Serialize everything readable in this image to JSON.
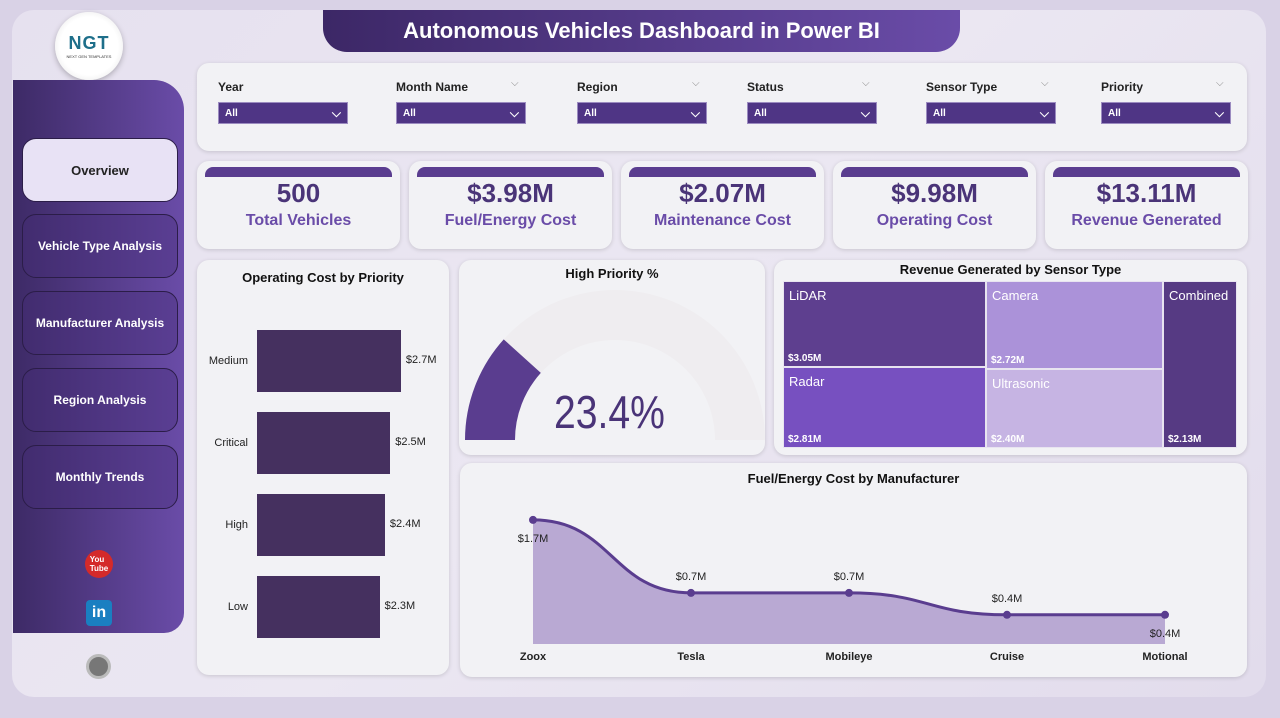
{
  "logo": {
    "text": "NGT",
    "subtext": "NEXT GEN TEMPLATES"
  },
  "header": {
    "title": "Autonomous Vehicles Dashboard in Power BI"
  },
  "sidebar": {
    "items": [
      {
        "label": "Overview",
        "active": true
      },
      {
        "label": "Vehicle Type Analysis"
      },
      {
        "label": "Manufacturer Analysis"
      },
      {
        "label": "Region Analysis"
      },
      {
        "label": "Monthly Trends"
      }
    ],
    "social": [
      "youtube-icon",
      "linkedin-icon",
      "globe-icon"
    ]
  },
  "filters": [
    {
      "label": "Year",
      "value": "All"
    },
    {
      "label": "Month Name",
      "value": "All"
    },
    {
      "label": "Region",
      "value": "All"
    },
    {
      "label": "Status",
      "value": "All"
    },
    {
      "label": "Sensor Type",
      "value": "All"
    },
    {
      "label": "Priority",
      "value": "All"
    }
  ],
  "kpis": [
    {
      "value": "500",
      "label": "Total Vehicles"
    },
    {
      "value": "$3.98M",
      "label": "Fuel/Energy Cost"
    },
    {
      "value": "$2.07M",
      "label": "Maintenance Cost"
    },
    {
      "value": "$9.98M",
      "label": "Operating Cost"
    },
    {
      "value": "$13.11M",
      "label": "Revenue Generated"
    }
  ],
  "colors": {
    "primary": "#4f3585",
    "accent": "#6a4ca8"
  },
  "chart_data": [
    {
      "type": "bar",
      "orientation": "horizontal",
      "title": "Operating Cost by Priority",
      "categories": [
        "Medium",
        "Critical",
        "High",
        "Low"
      ],
      "values": [
        2.7,
        2.5,
        2.4,
        2.3
      ],
      "labels": [
        "$2.7M",
        "$2.5M",
        "$2.4M",
        "$2.3M"
      ],
      "color": "#45305f"
    },
    {
      "type": "gauge",
      "title": "High Priority %",
      "value": 23.4,
      "label": "23.4%",
      "range": [
        0,
        100
      ]
    },
    {
      "type": "treemap",
      "title": "Revenue Generated by Sensor Type",
      "items": [
        {
          "name": "LiDAR",
          "value": 3.05,
          "label": "$3.05M",
          "color": "#5e3f8f"
        },
        {
          "name": "Camera",
          "value": 2.72,
          "label": "$2.72M",
          "color": "#ab92d9"
        },
        {
          "name": "Radar",
          "value": 2.81,
          "label": "$2.81M",
          "color": "#7750c0"
        },
        {
          "name": "Ultrasonic",
          "value": 2.4,
          "label": "$2.40M",
          "color": "#c6b4e3"
        },
        {
          "name": "Combined",
          "value": 2.13,
          "label": "$2.13M",
          "color": "#563a83"
        }
      ]
    },
    {
      "type": "area",
      "title": "Fuel/Energy Cost by Manufacturer",
      "categories": [
        "Zoox",
        "Tesla",
        "Mobileye",
        "Cruise",
        "Motional"
      ],
      "values": [
        1.7,
        0.7,
        0.7,
        0.4,
        0.4
      ],
      "labels": [
        "$1.7M",
        "$0.7M",
        "$0.7M",
        "$0.4M",
        "$0.4M"
      ],
      "color": "#5a3d8f"
    }
  ]
}
